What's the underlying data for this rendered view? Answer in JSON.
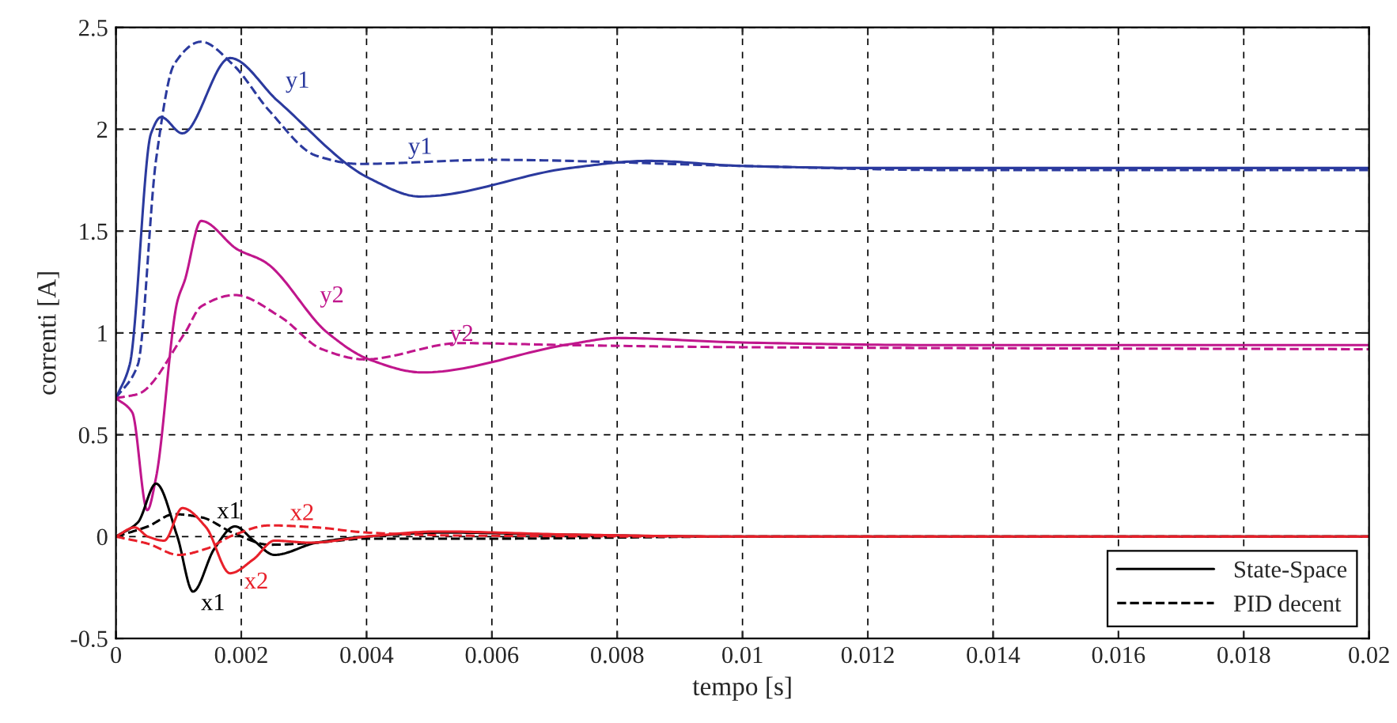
{
  "chart_data": {
    "type": "line",
    "xlabel": "tempo [s]",
    "ylabel": "correnti [A]",
    "xlim": [
      0,
      0.02
    ],
    "ylim": [
      -0.5,
      2.5
    ],
    "xticks": [
      0,
      0.002,
      0.004,
      0.006,
      0.008,
      0.01,
      0.012,
      0.014,
      0.016,
      0.018,
      0.02
    ],
    "yticks": [
      -0.5,
      0,
      0.5,
      1,
      1.5,
      2,
      2.5
    ],
    "grid": true,
    "legend": "bottom right",
    "marker": "none",
    "series": [
      {
        "color": "#2b3a9e",
        "line_style": "solid",
        "x": [
          0,
          0.00022,
          0.00056,
          0.00072,
          0.00106,
          0.00182,
          0.00258,
          0.00404,
          0.00485,
          0.00725,
          0.0085,
          0.01,
          0.012,
          0.02
        ],
        "values": [
          0.68,
          0.845,
          1.98,
          2.06,
          1.98,
          2.35,
          2.14,
          1.76,
          1.67,
          1.81,
          1.845,
          1.82,
          1.81,
          1.81
        ]
      },
      {
        "color": "#2b3a9e",
        "line_style": "dashed",
        "x": [
          0,
          0.00035,
          0.00064,
          0.00093,
          0.00136,
          0.00186,
          0.00245,
          0.0032,
          0.00388,
          0.006,
          0.01,
          0.0133,
          0.02
        ],
        "values": [
          0.68,
          0.845,
          1.85,
          2.32,
          2.43,
          2.32,
          2.09,
          1.87,
          1.83,
          1.85,
          1.82,
          1.8,
          1.8
        ]
      },
      {
        "color": "#c0168c",
        "line_style": "solid",
        "x": [
          0,
          0.00026,
          0.0005,
          0.00064,
          0.00098,
          0.0011,
          0.00136,
          0.00194,
          0.00237,
          0.00338,
          0.00404,
          0.00489,
          0.00725,
          0.008,
          0.01,
          0.0133,
          0.02
        ],
        "values": [
          0.68,
          0.61,
          0.13,
          0.29,
          1.155,
          1.26,
          1.55,
          1.41,
          1.35,
          1.0,
          0.87,
          0.806,
          0.945,
          0.975,
          0.953,
          0.94,
          0.94
        ]
      },
      {
        "color": "#c0168c",
        "line_style": "dashed",
        "x": [
          0,
          0.00035,
          0.0011,
          0.00136,
          0.0019,
          0.00262,
          0.00329,
          0.00396,
          0.0055,
          0.00725,
          0.01,
          0.02
        ],
        "values": [
          0.68,
          0.7,
          1.0,
          1.13,
          1.186,
          1.08,
          0.92,
          0.87,
          0.95,
          0.94,
          0.93,
          0.92
        ]
      },
      {
        "name": "State-Space",
        "color": "#000000",
        "line_style": "solid",
        "x": [
          0,
          0.00035,
          0.00064,
          0.00098,
          0.00123,
          0.00157,
          0.0019,
          0.0022,
          0.00253,
          0.0032,
          0.004,
          0.0053,
          0.007,
          0.01,
          0.02
        ],
        "values": [
          0,
          0.07,
          0.26,
          0,
          -0.27,
          -0.06,
          0.05,
          -0.02,
          -0.09,
          -0.03,
          0,
          0.02,
          0.01,
          0,
          0
        ]
      },
      {
        "name": "PID decent",
        "color": "#000000",
        "line_style": "dashed",
        "x": [
          0,
          0.00051,
          0.00093,
          0.00136,
          0.00186,
          0.00245,
          0.0032,
          0.004,
          0.006,
          0.01,
          0.02
        ],
        "values": [
          0,
          0.05,
          0.11,
          0.095,
          0.02,
          -0.04,
          -0.03,
          -0.01,
          -0.01,
          0,
          0
        ]
      },
      {
        "color": "#e8202a",
        "line_style": "solid",
        "x": [
          0,
          0.0003,
          0.00051,
          0.00077,
          0.00106,
          0.00144,
          0.00182,
          0.0022,
          0.00253,
          0.0031,
          0.004,
          0.00514,
          0.00725,
          0.01,
          0.02
        ],
        "values": [
          0,
          0.045,
          0,
          -0.02,
          0.14,
          0.045,
          -0.18,
          -0.11,
          -0.02,
          -0.03,
          0,
          0.025,
          0.01,
          0,
          0
        ]
      },
      {
        "color": "#e8202a",
        "line_style": "dashed",
        "x": [
          0,
          0.00051,
          0.001,
          0.00144,
          0.00186,
          0.00245,
          0.0032,
          0.004,
          0.0055,
          0.01,
          0.02
        ],
        "values": [
          0,
          -0.035,
          -0.09,
          -0.06,
          0.005,
          0.055,
          0.045,
          0.02,
          0.005,
          0,
          0
        ]
      }
    ],
    "annotations": [
      {
        "text": "y1",
        "x": 0.00258,
        "y": 2.14
      },
      {
        "text": "y1",
        "x": 0.00388,
        "y": 1.83
      },
      {
        "text": "y2",
        "x": 0.00338,
        "y": 1.0
      },
      {
        "text": "y2",
        "x": 0.0055,
        "y": 0.95
      },
      {
        "text": "x1",
        "x": 0.00136,
        "y": 0.095
      },
      {
        "text": "x1",
        "x": 0.00123,
        "y": -0.27
      },
      {
        "text": "x2",
        "x": 0.00245,
        "y": 0.055
      },
      {
        "text": "x2",
        "x": 0.00182,
        "y": -0.18
      }
    ]
  }
}
